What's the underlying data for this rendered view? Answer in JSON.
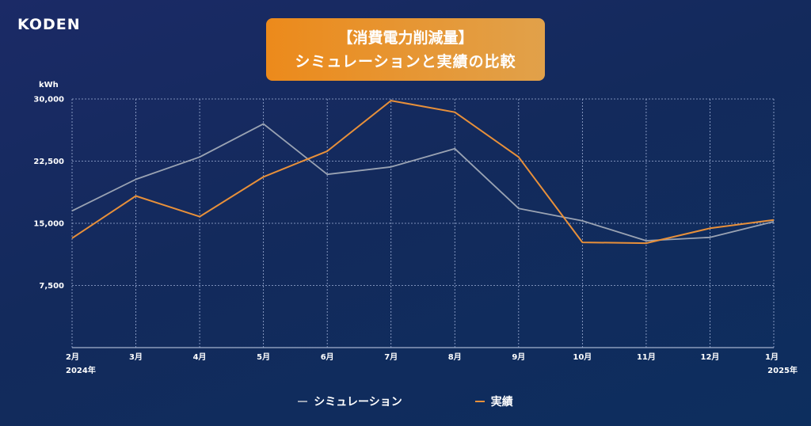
{
  "brand": {
    "logo_text": "KODEN"
  },
  "header": {
    "title_line1": "【消費電力削減量】",
    "title_line2": "シミュレーションと実績の比較"
  },
  "colors": {
    "simulation": "#9aa3b3",
    "actual": "#e8903a",
    "grid": "#9fb0d6",
    "axis": "#c9d3ea"
  },
  "chart_data": {
    "type": "line",
    "unit_label": "kWh",
    "ylim": [
      0,
      30000
    ],
    "yticks": [
      7500,
      15000,
      22500,
      30000
    ],
    "ytick_labels": [
      "7,500",
      "15,000",
      "22,500",
      "30,000"
    ],
    "categories": [
      "2月",
      "3月",
      "4月",
      "5月",
      "6月",
      "7月",
      "8月",
      "9月",
      "10月",
      "11月",
      "12月",
      "1月"
    ],
    "year_labels": {
      "start": "2024年",
      "end": "2025年"
    },
    "grid": true,
    "legend_position": "bottom",
    "series": [
      {
        "name": "シミュレーション",
        "color": "#9aa3b3",
        "values": [
          16500,
          20300,
          23000,
          27000,
          20900,
          21800,
          24000,
          16800,
          15300,
          12900,
          13300,
          15200
        ]
      },
      {
        "name": "実績",
        "color": "#e8903a",
        "values": [
          13200,
          18300,
          15800,
          20600,
          23700,
          29800,
          28400,
          23000,
          12700,
          12600,
          14400,
          15400
        ]
      }
    ]
  }
}
